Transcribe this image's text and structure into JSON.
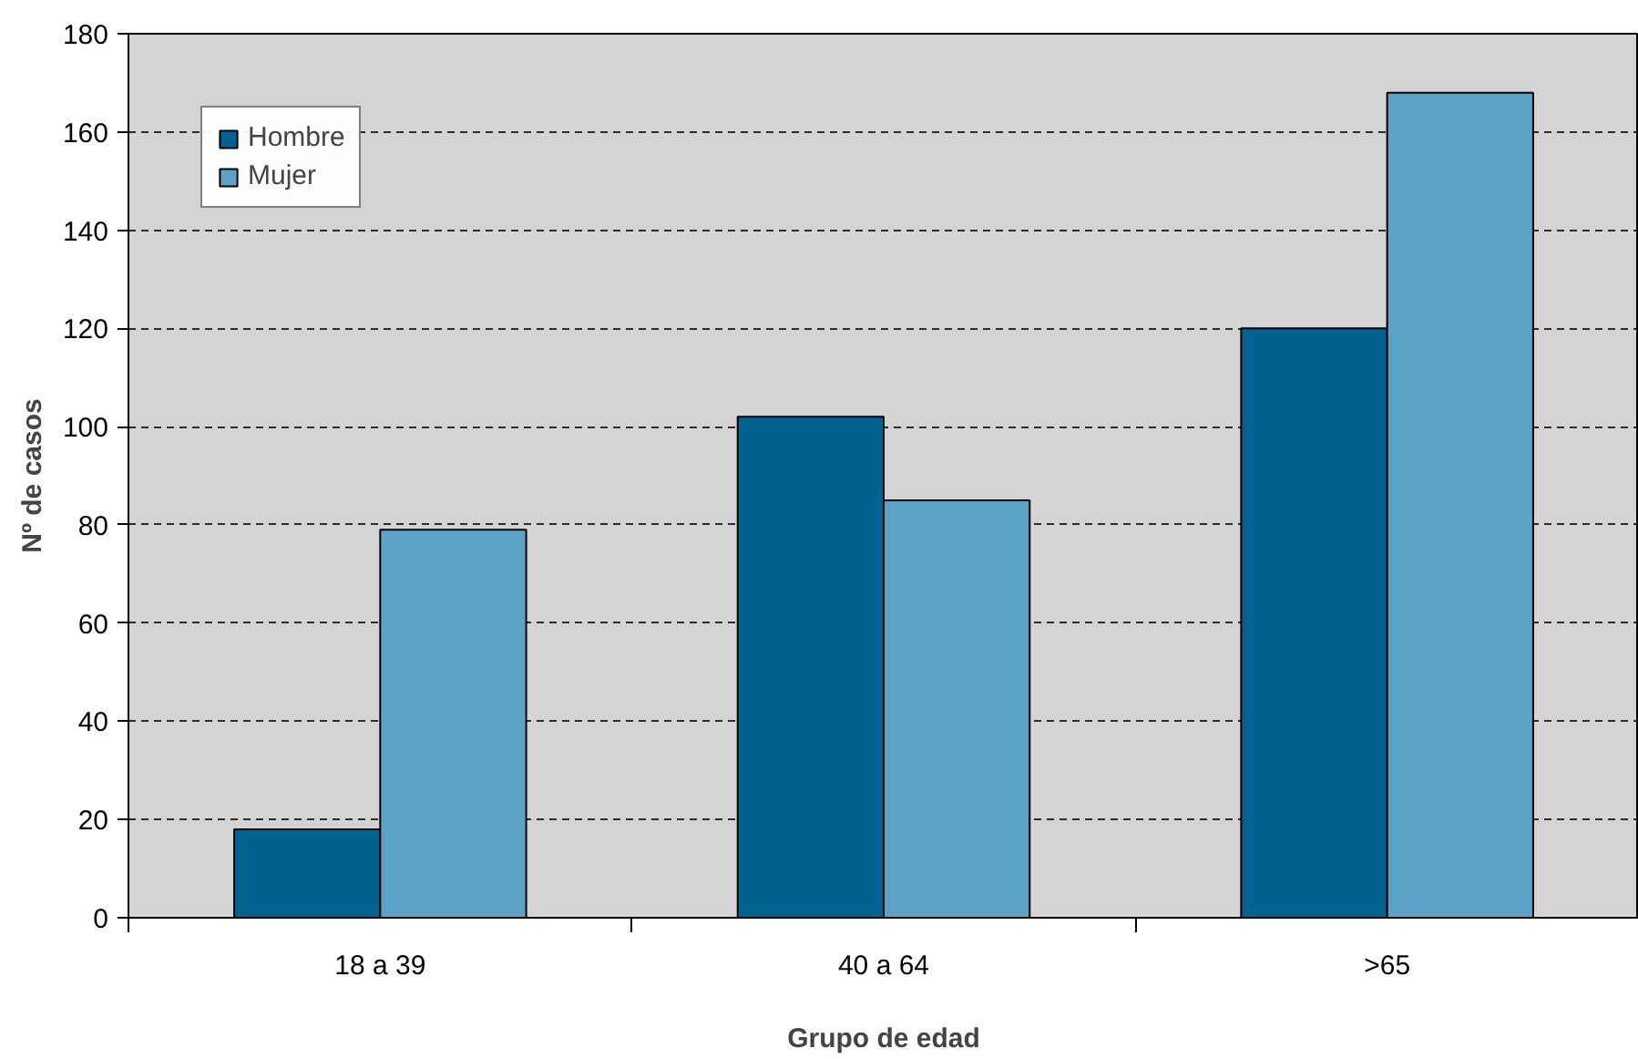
{
  "chart_data": {
    "type": "bar",
    "xlabel": "Grupo de edad",
    "ylabel": "Nº de casos",
    "categories": [
      "18 a 39",
      "40 a 64",
      ">65"
    ],
    "series": [
      {
        "name": "Hombre",
        "color": "#00628f",
        "values": [
          18,
          102,
          120
        ]
      },
      {
        "name": "Mujer",
        "color": "#5ba3c6",
        "values": [
          79,
          85,
          168
        ]
      }
    ],
    "ylim": [
      0,
      180
    ],
    "yticks": [
      0,
      20,
      40,
      60,
      80,
      100,
      120,
      140,
      160,
      180
    ],
    "grid": "y",
    "legend": "top left"
  }
}
